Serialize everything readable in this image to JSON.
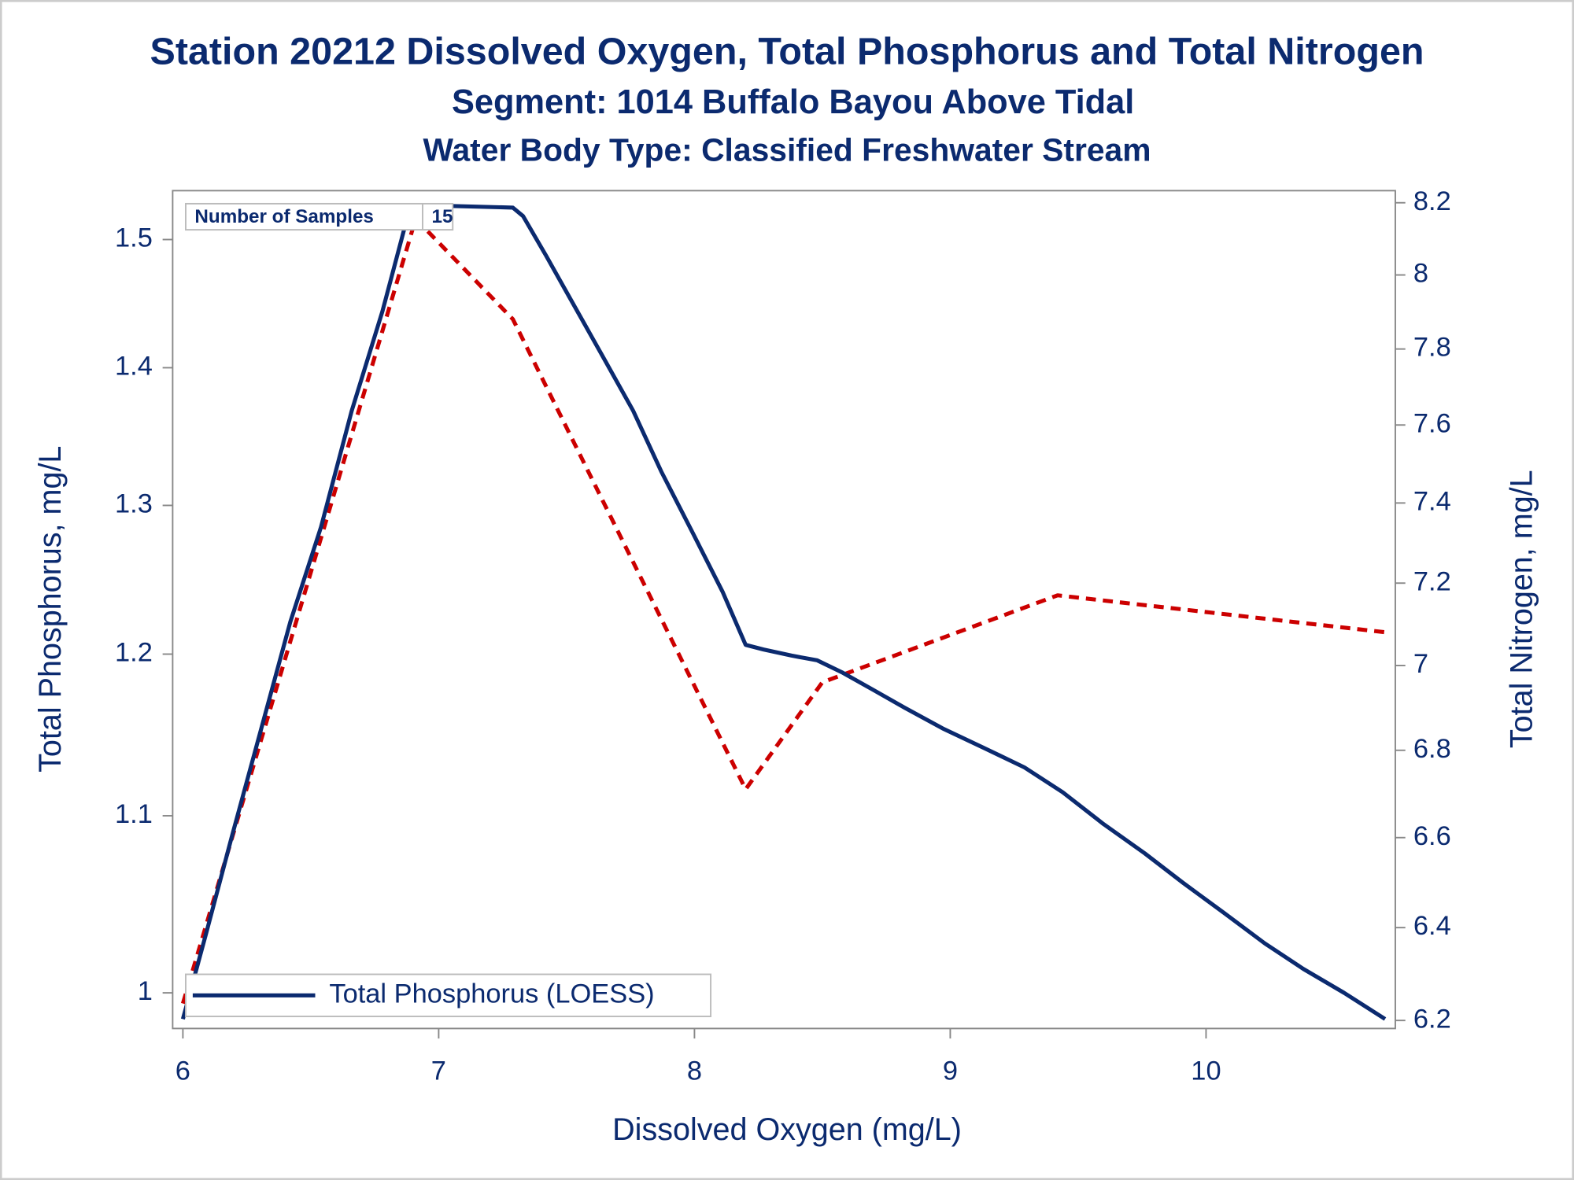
{
  "chart_data": {
    "type": "line",
    "title": "Station 20212  Dissolved Oxygen, Total Phosphorus and Total Nitrogen",
    "subtitle": "Segment: 1014  Buffalo Bayou Above Tidal",
    "subtitle2": "Water Body Type: Classified Freshwater Stream",
    "xlabel": "Dissolved Oxygen (mg/L)",
    "ylabel": "Total Phosphorus, mg/L",
    "y2label": "Total Nitrogen, mg/L",
    "annotation": {
      "label": "Number of Samples",
      "value": 15
    },
    "xlim": [
      5.96,
      10.74
    ],
    "xticks": [
      6,
      7,
      8,
      9,
      10
    ],
    "ylim": [
      0.981,
      1.54
    ],
    "yticks": [
      1,
      1.1,
      1.2,
      1.3,
      1.4,
      1.5
    ],
    "yscale": "log",
    "y2lim": [
      6.183,
      8.234
    ],
    "y2ticks": [
      6.2,
      6.4,
      6.6,
      6.8,
      7,
      7.2,
      7.4,
      7.6,
      7.8,
      8,
      8.2
    ],
    "y2scale": "log",
    "legend": "lower left",
    "series": [
      {
        "name": "Total Phosphorus (LOESS)",
        "color": "#0b2a6f",
        "dash": "solid",
        "axis": "y",
        "x": [
          6.0,
          6.09,
          6.19,
          6.31,
          6.42,
          6.54,
          6.66,
          6.78,
          6.89,
          6.93,
          7.29,
          7.33,
          7.42,
          7.52,
          7.64,
          7.76,
          7.87,
          7.99,
          8.11,
          8.2,
          8.27,
          8.38,
          8.48,
          8.58,
          8.7,
          8.82,
          8.97,
          9.13,
          9.29,
          9.44,
          9.6,
          9.76,
          9.91,
          10.07,
          10.23,
          10.38,
          10.54,
          10.7
        ],
        "values": [
          0.986,
          1.032,
          1.087,
          1.155,
          1.221,
          1.285,
          1.368,
          1.443,
          1.528,
          1.528,
          1.526,
          1.519,
          1.487,
          1.451,
          1.409,
          1.368,
          1.324,
          1.282,
          1.241,
          1.206,
          1.203,
          1.199,
          1.196,
          1.188,
          1.177,
          1.166,
          1.153,
          1.141,
          1.129,
          1.114,
          1.095,
          1.078,
          1.061,
          1.044,
          1.027,
          1.013,
          1.0,
          0.986
        ]
      },
      {
        "color": "#cc0000",
        "dash": "dashed",
        "axis": "y2",
        "x": [
          6.0,
          6.91,
          7.29,
          8.2,
          8.5,
          9.42,
          10.7
        ],
        "values": [
          6.236,
          8.155,
          7.88,
          6.71,
          6.96,
          7.17,
          7.08
        ]
      }
    ]
  }
}
